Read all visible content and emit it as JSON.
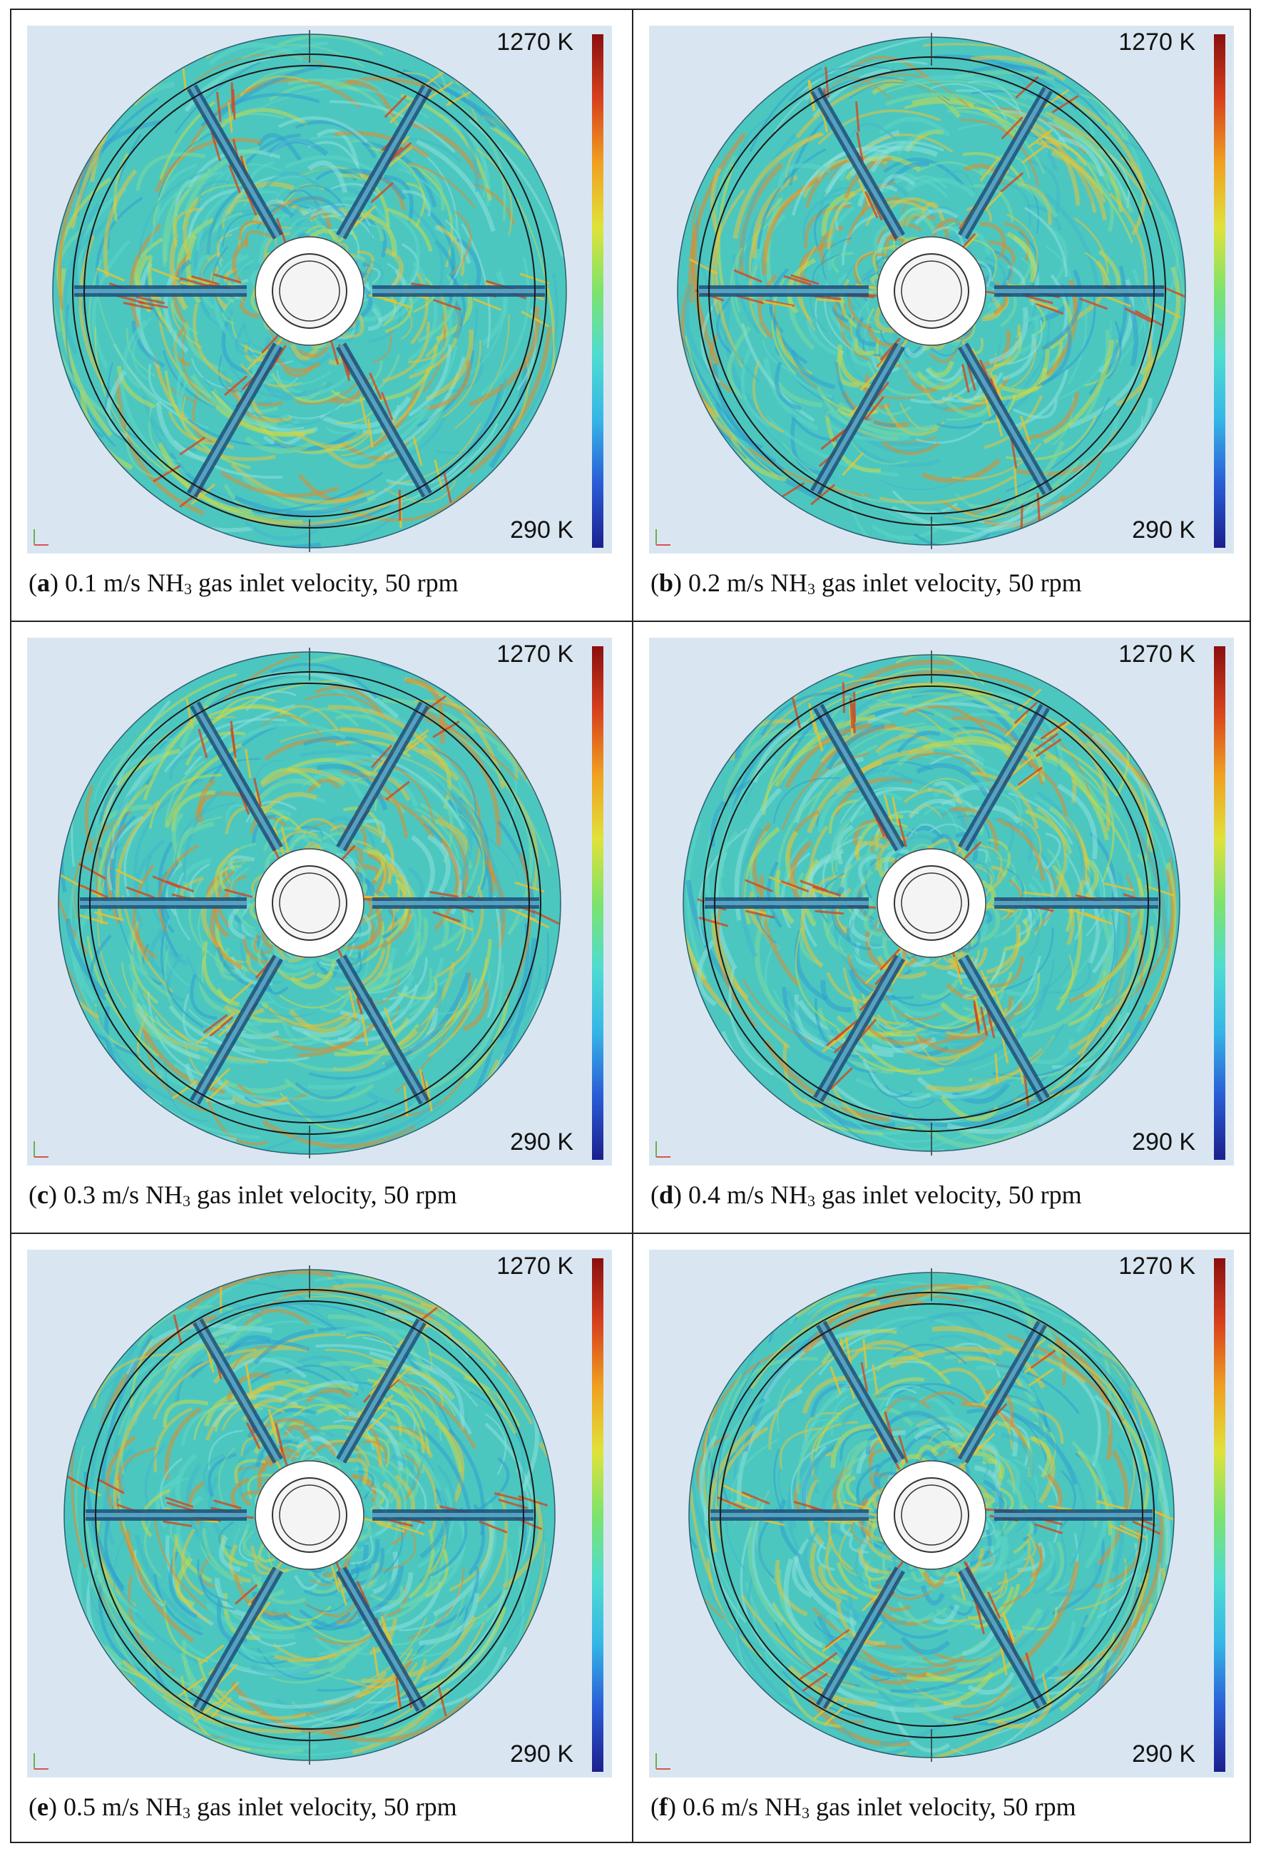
{
  "colors": {
    "scale": [
      "#1b1f8c",
      "#2a5cd6",
      "#35b6e6",
      "#4fdcd0",
      "#7de36c",
      "#e0e238",
      "#f0a020",
      "#d8401c",
      "#8a0f0f"
    ],
    "field_base": "#4cc7c0",
    "panel_bg": "#d9e6f1"
  },
  "panels": [
    {
      "id": "a",
      "label": "a",
      "caption_prefix": "0.1 m/s NH",
      "caption_sub": "3",
      "caption_suffix": " gas inlet velocity, 50 rpm",
      "scale_max": "1270 K",
      "scale_min": "290 K"
    },
    {
      "id": "b",
      "label": "b",
      "caption_prefix": "0.2 m/s NH",
      "caption_sub": "3",
      "caption_suffix": " gas inlet velocity, 50 rpm",
      "scale_max": "1270 K",
      "scale_min": "290 K"
    },
    {
      "id": "c",
      "label": "c",
      "caption_prefix": "0.3 m/s NH",
      "caption_sub": "3",
      "caption_suffix": " gas inlet velocity, 50 rpm",
      "scale_max": "1270 K",
      "scale_min": "290 K"
    },
    {
      "id": "d",
      "label": "d",
      "caption_prefix": "0.4 m/s NH",
      "caption_sub": "3",
      "caption_suffix": " gas inlet velocity, 50 rpm",
      "scale_max": "1270 K",
      "scale_min": "290 K"
    },
    {
      "id": "e",
      "label": "e",
      "caption_prefix": "0.5 m/s NH",
      "caption_sub": "3",
      "caption_suffix": " gas inlet velocity, 50 rpm",
      "scale_max": "1270 K",
      "scale_min": "290 K"
    },
    {
      "id": "f",
      "label": "f",
      "caption_prefix": "0.6 m/s NH",
      "caption_sub": "3",
      "caption_suffix": " gas inlet velocity, 50 rpm",
      "scale_max": "1270 K",
      "scale_min": "290 K"
    }
  ]
}
